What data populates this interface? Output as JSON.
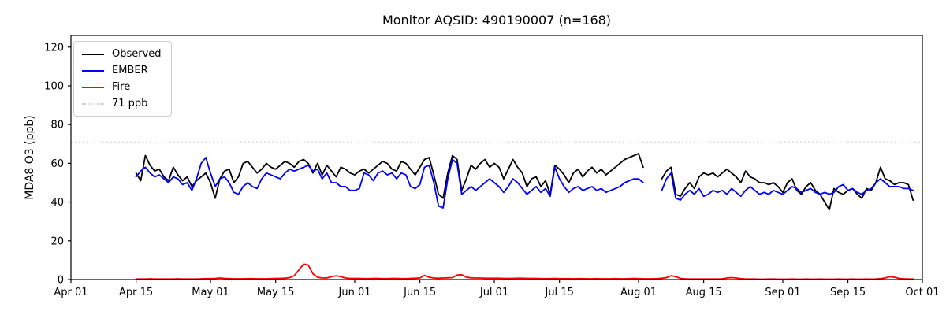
{
  "chart_data": {
    "type": "line",
    "title": "Monitor AQSID: 490190007 (n=168)",
    "xlabel": "",
    "ylabel": "MDA8 O3 (ppb)",
    "ylim": [
      0,
      126
    ],
    "yticks": [
      0,
      20,
      40,
      60,
      80,
      100,
      120
    ],
    "x_domain_days": [
      0,
      183
    ],
    "xticks": [
      {
        "day": 0,
        "label": "Apr 01"
      },
      {
        "day": 14,
        "label": "Apr 15"
      },
      {
        "day": 30,
        "label": "May 01"
      },
      {
        "day": 44,
        "label": "May 15"
      },
      {
        "day": 61,
        "label": "Jun 01"
      },
      {
        "day": 75,
        "label": "Jun 15"
      },
      {
        "day": 91,
        "label": "Jul 01"
      },
      {
        "day": 105,
        "label": "Jul 15"
      },
      {
        "day": 122,
        "label": "Aug 01"
      },
      {
        "day": 136,
        "label": "Aug 15"
      },
      {
        "day": 153,
        "label": "Sep 01"
      },
      {
        "day": 167,
        "label": "Sep 15"
      },
      {
        "day": 183,
        "label": "Oct 01"
      }
    ],
    "grid": false,
    "threshold": {
      "value": 71,
      "label": "71 ppb",
      "color": "#d3d3d3",
      "style": "dotted"
    },
    "series_start_day": 14,
    "series_start_label": "Apr 15",
    "series_end_label": "Sep 29",
    "n_points": 168,
    "series": [
      {
        "name": "Observed",
        "color": "#000000",
        "values": [
          55,
          51,
          64,
          59,
          56,
          57,
          53,
          51,
          58,
          54,
          51,
          53,
          48,
          51,
          53,
          55,
          50,
          42,
          52,
          56,
          57,
          50,
          53,
          60,
          61,
          58,
          55,
          57,
          60,
          58,
          57,
          59,
          61,
          60,
          58,
          61,
          62,
          60,
          55,
          60,
          54,
          59,
          56,
          53,
          58,
          57,
          55,
          54,
          56,
          57,
          55,
          57,
          59,
          61,
          60,
          57,
          56,
          61,
          60,
          57,
          54,
          58,
          62,
          63,
          54,
          44,
          42,
          55,
          64,
          62,
          46,
          52,
          59,
          57,
          60,
          62,
          58,
          60,
          58,
          52,
          57,
          62,
          58,
          55,
          48,
          52,
          53,
          48,
          51,
          44,
          59,
          57,
          54,
          50,
          55,
          57,
          53,
          56,
          58,
          55,
          57,
          54,
          56,
          58,
          60,
          62,
          63,
          64,
          65,
          58,
          null,
          null,
          null,
          52,
          56,
          58,
          44,
          43,
          47,
          50,
          47,
          53,
          55,
          54,
          55,
          53,
          55,
          57,
          55,
          53,
          50,
          56,
          53,
          52,
          50,
          50,
          49,
          50,
          48,
          45,
          50,
          52,
          46,
          44,
          48,
          50,
          46,
          44,
          40,
          36,
          47,
          45,
          44,
          46,
          47,
          44,
          42,
          47,
          46,
          50,
          58,
          52,
          51,
          49,
          50,
          50,
          49,
          41
        ]
      },
      {
        "name": "EMBER",
        "color": "#0000ff",
        "values": [
          53,
          56,
          58,
          55,
          53,
          54,
          52,
          50,
          53,
          52,
          49,
          50,
          46,
          52,
          60,
          63,
          55,
          48,
          52,
          53,
          50,
          45,
          44,
          48,
          50,
          48,
          47,
          52,
          55,
          54,
          53,
          52,
          55,
          57,
          56,
          57,
          58,
          59,
          56,
          57,
          52,
          55,
          50,
          50,
          48,
          48,
          46,
          46,
          47,
          55,
          54,
          51,
          55,
          56,
          54,
          55,
          52,
          55,
          54,
          48,
          47,
          49,
          58,
          59,
          50,
          38,
          37,
          52,
          62,
          60,
          44,
          46,
          48,
          46,
          48,
          50,
          52,
          50,
          48,
          45,
          48,
          52,
          50,
          47,
          44,
          46,
          48,
          45,
          47,
          43,
          58,
          52,
          48,
          45,
          47,
          48,
          46,
          47,
          48,
          46,
          47,
          45,
          46,
          47,
          48,
          50,
          51,
          52,
          52,
          50,
          null,
          null,
          null,
          46,
          52,
          55,
          42,
          41,
          44,
          46,
          44,
          47,
          43,
          44,
          46,
          45,
          46,
          44,
          47,
          45,
          43,
          46,
          48,
          46,
          44,
          45,
          44,
          46,
          45,
          44,
          46,
          48,
          47,
          45,
          46,
          47,
          45,
          44,
          45,
          44,
          45,
          48,
          49,
          46,
          47,
          45,
          44,
          46,
          47,
          50,
          52,
          50,
          48,
          48,
          48,
          47,
          47,
          46
        ]
      },
      {
        "name": "Fire",
        "color": "#ff0000",
        "values": [
          0.3,
          0.3,
          0.3,
          0.4,
          0.3,
          0.3,
          0.3,
          0.3,
          0.3,
          0.4,
          0.3,
          0.3,
          0.3,
          0.3,
          0.4,
          0.5,
          0.5,
          0.6,
          0.8,
          0.6,
          0.5,
          0.4,
          0.4,
          0.4,
          0.5,
          0.5,
          0.4,
          0.4,
          0.4,
          0.5,
          0.6,
          0.6,
          0.7,
          1.0,
          2.0,
          5.0,
          8.0,
          7.5,
          3.0,
          1.2,
          0.8,
          0.8,
          1.5,
          2.0,
          1.5,
          0.8,
          0.6,
          0.6,
          0.6,
          0.5,
          0.5,
          0.6,
          0.6,
          0.5,
          0.5,
          0.6,
          0.6,
          0.5,
          0.5,
          0.6,
          0.7,
          0.8,
          2.2,
          1.2,
          0.8,
          0.7,
          0.8,
          0.9,
          1.0,
          2.3,
          2.5,
          1.2,
          0.9,
          0.8,
          0.8,
          0.7,
          0.7,
          0.7,
          0.7,
          0.6,
          0.6,
          0.6,
          0.7,
          0.7,
          0.6,
          0.6,
          0.6,
          0.5,
          0.5,
          0.5,
          0.6,
          0.5,
          0.5,
          0.5,
          0.4,
          0.5,
          0.5,
          0.4,
          0.4,
          0.5,
          0.4,
          0.4,
          0.4,
          0.5,
          0.4,
          0.4,
          0.5,
          0.6,
          0.5,
          0.4,
          0.4,
          0.4,
          0.5,
          0.7,
          1.0,
          2.0,
          1.5,
          0.6,
          0.4,
          0.3,
          0.3,
          0.3,
          0.3,
          0.3,
          0.3,
          0.3,
          0.4,
          0.8,
          1.0,
          0.8,
          0.5,
          0.3,
          0.3,
          0.3,
          0.2,
          0.2,
          0.3,
          0.3,
          0.2,
          0.2,
          0.2,
          0.3,
          0.2,
          0.2,
          0.3,
          0.2,
          0.2,
          0.3,
          0.2,
          0.2,
          0.2,
          0.3,
          0.2,
          0.2,
          0.3,
          0.2,
          0.2,
          0.3,
          0.2,
          0.3,
          0.5,
          0.8,
          1.5,
          1.2,
          0.6,
          0.4,
          0.3,
          0.3
        ]
      }
    ],
    "legend": {
      "position": "upper left",
      "entries": [
        {
          "label": "Observed",
          "color": "#000000",
          "style": "solid"
        },
        {
          "label": "EMBER",
          "color": "#0000ff",
          "style": "solid"
        },
        {
          "label": "Fire",
          "color": "#ff0000",
          "style": "solid"
        },
        {
          "label": "71 ppb",
          "color": "#d3d3d3",
          "style": "dotted"
        }
      ]
    }
  }
}
